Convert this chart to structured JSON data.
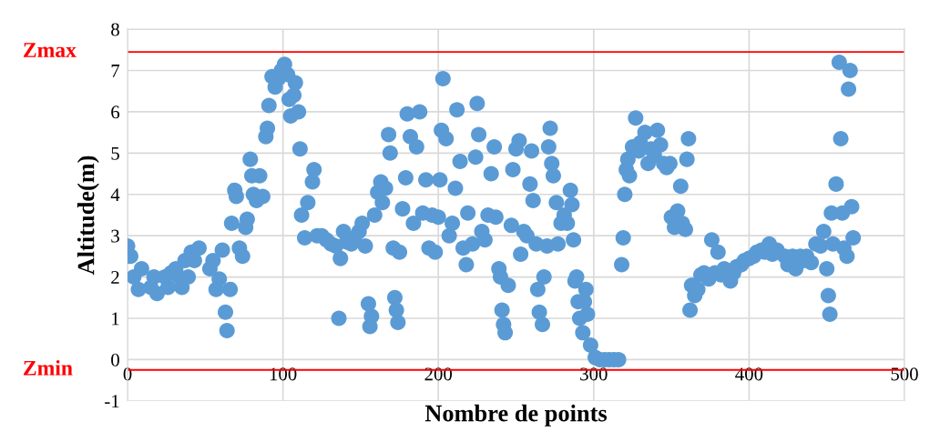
{
  "chart_data": {
    "type": "scatter",
    "xlabel": "Nombre de points",
    "ylabel": "Altitude(m)",
    "xlim": [
      0,
      500
    ],
    "xticks": [
      0,
      100,
      200,
      300,
      400,
      500
    ],
    "ylim": [
      -1,
      8
    ],
    "yticks": [
      -1,
      0,
      1,
      2,
      3,
      4,
      5,
      6,
      7,
      8
    ],
    "grid": true,
    "marker": "circle",
    "ref_lines": [
      {
        "axis": "y",
        "value": 7.45,
        "label": "Zmax",
        "color": "#ff0000"
      },
      {
        "axis": "y",
        "value": -0.25,
        "label": "Zmin",
        "color": "#ff0000"
      }
    ],
    "series": [
      {
        "color": "#5b9bd5",
        "x": [
          0,
          2,
          4,
          7,
          9,
          15,
          17,
          19,
          24,
          26,
          28,
          31,
          33,
          35,
          37,
          39,
          41,
          43,
          46,
          53,
          55,
          57,
          59,
          61,
          63,
          64,
          66,
          67,
          69,
          70,
          72,
          74,
          76,
          77,
          79,
          80,
          81,
          83,
          85,
          87,
          89,
          90,
          91,
          93,
          95,
          97,
          99,
          101,
          103,
          104,
          105,
          107,
          108,
          110,
          111,
          112,
          114,
          116,
          119,
          120,
          122,
          125,
          128,
          131,
          134,
          136,
          137,
          139,
          141,
          144,
          146,
          149,
          151,
          153,
          155,
          156,
          157,
          159,
          161,
          163,
          164,
          166,
          168,
          169,
          171,
          172,
          173,
          174,
          175,
          177,
          179,
          180,
          182,
          184,
          186,
          188,
          190,
          192,
          194,
          196,
          198,
          200,
          201,
          202,
          203,
          205,
          207,
          209,
          211,
          212,
          214,
          216,
          218,
          219,
          222,
          224,
          225,
          226,
          228,
          230,
          232,
          234,
          236,
          237,
          239,
          240,
          241,
          242,
          243,
          245,
          247,
          248,
          250,
          252,
          253,
          255,
          257,
          259,
          260,
          261,
          263,
          264,
          265,
          267,
          268,
          270,
          271,
          272,
          273,
          274,
          276,
          277,
          279,
          281,
          283,
          285,
          286,
          287,
          288,
          289,
          290,
          291,
          293,
          294,
          295,
          296,
          298,
          301,
          304,
          307,
          310,
          313,
          316,
          318,
          319,
          320,
          321,
          322,
          323,
          325,
          327,
          329,
          330,
          333,
          335,
          337,
          339,
          341,
          343,
          345,
          347,
          349,
          350,
          352,
          354,
          356,
          357,
          359,
          360,
          361,
          362,
          363,
          365,
          367,
          369,
          371,
          374,
          376,
          378,
          380,
          382,
          384,
          388,
          390,
          392,
          395,
          397,
          400,
          403,
          405,
          408,
          410,
          413,
          415,
          418,
          423,
          425,
          428,
          430,
          433,
          435,
          437,
          440,
          443,
          446,
          448,
          450,
          451,
          452,
          453,
          454,
          456,
          458,
          459,
          460,
          461,
          463,
          464,
          465,
          466,
          467
        ],
        "values": [
          2.75,
          2.5,
          2.0,
          1.7,
          2.2,
          1.75,
          2.0,
          1.6,
          2.0,
          1.75,
          2.1,
          2.2,
          2.0,
          1.75,
          2.4,
          2.0,
          2.6,
          2.4,
          2.7,
          2.2,
          2.4,
          1.7,
          1.95,
          2.65,
          1.15,
          0.7,
          1.7,
          3.3,
          4.1,
          3.95,
          2.7,
          2.5,
          3.2,
          3.4,
          4.85,
          4.45,
          4.0,
          3.85,
          4.45,
          3.95,
          5.4,
          5.6,
          6.15,
          6.85,
          6.6,
          6.8,
          7.0,
          7.15,
          6.9,
          6.3,
          5.9,
          6.4,
          6.7,
          6.0,
          5.1,
          3.5,
          2.95,
          3.8,
          4.3,
          4.6,
          3.0,
          3.0,
          2.9,
          2.8,
          2.75,
          1.0,
          2.45,
          3.1,
          2.85,
          2.8,
          2.95,
          3.1,
          3.3,
          2.75,
          1.35,
          0.8,
          1.05,
          3.5,
          4.05,
          4.3,
          3.8,
          4.15,
          5.45,
          5.0,
          2.7,
          1.5,
          1.2,
          0.9,
          2.6,
          3.65,
          4.4,
          5.95,
          5.4,
          3.3,
          5.15,
          6.0,
          3.55,
          4.35,
          2.7,
          3.5,
          2.6,
          3.45,
          4.35,
          5.55,
          6.8,
          5.35,
          3.0,
          3.3,
          4.15,
          6.05,
          4.8,
          2.7,
          2.3,
          3.55,
          2.8,
          4.9,
          6.2,
          5.45,
          3.1,
          2.9,
          3.5,
          4.5,
          5.15,
          3.45,
          2.2,
          2.0,
          1.2,
          0.85,
          0.65,
          1.8,
          3.25,
          4.6,
          5.1,
          5.3,
          2.55,
          3.1,
          3.0,
          4.25,
          5.05,
          3.85,
          2.8,
          1.7,
          1.15,
          0.85,
          2.0,
          2.75,
          5.15,
          5.6,
          4.75,
          4.45,
          3.8,
          2.8,
          3.3,
          3.5,
          3.3,
          4.1,
          3.75,
          2.9,
          1.9,
          2.0,
          1.4,
          1.0,
          0.65,
          1.4,
          1.7,
          1.1,
          0.35,
          0.05,
          0.0,
          0.0,
          0.0,
          0.0,
          0.0,
          2.3,
          2.95,
          4.0,
          4.6,
          4.85,
          4.45,
          5.15,
          5.85,
          5.05,
          5.25,
          5.5,
          4.75,
          5.1,
          4.95,
          5.55,
          5.2,
          4.75,
          4.65,
          4.75,
          3.45,
          3.2,
          3.6,
          4.2,
          3.3,
          3.15,
          4.85,
          5.35,
          1.2,
          1.8,
          1.55,
          1.7,
          2.05,
          2.1,
          1.95,
          2.9,
          2.1,
          2.6,
          2.05,
          2.2,
          1.9,
          2.1,
          2.25,
          2.3,
          2.4,
          2.45,
          2.5,
          2.6,
          2.65,
          2.6,
          2.8,
          2.55,
          2.65,
          2.5,
          2.3,
          2.5,
          2.2,
          2.5,
          2.4,
          2.5,
          2.35,
          2.8,
          2.75,
          3.1,
          2.2,
          1.55,
          1.1,
          3.55,
          2.8,
          4.25,
          7.2,
          5.35,
          3.55,
          2.7,
          2.5,
          6.55,
          7.0,
          3.7,
          2.95
        ]
      }
    ]
  }
}
